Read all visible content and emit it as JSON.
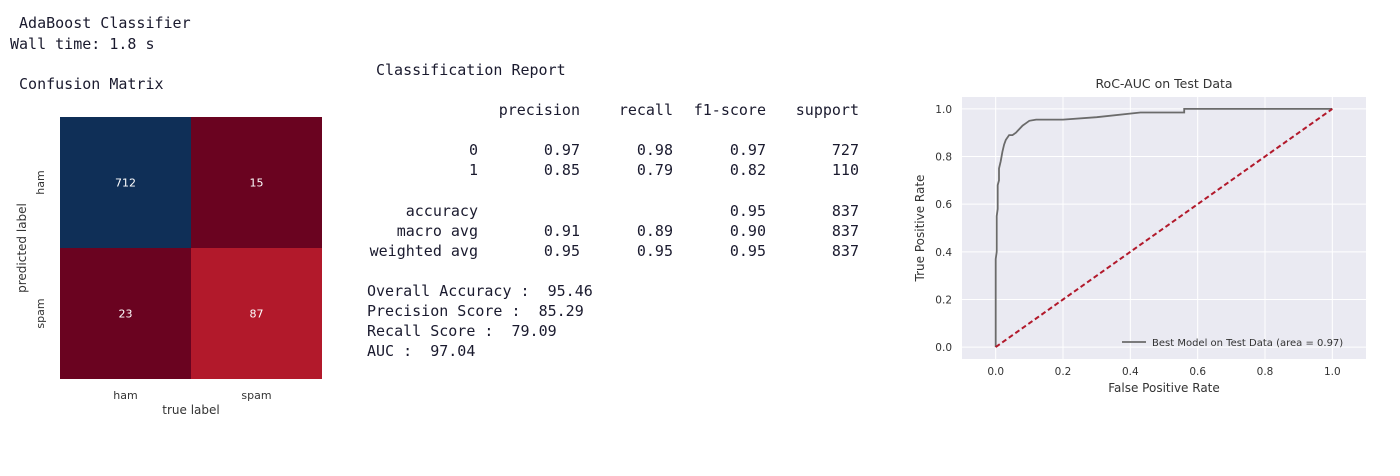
{
  "header": {
    "title": " AdaBoost Classifier",
    "wall_time": "Wall time: 1.8 s",
    "cm_title": " Confusion Matrix"
  },
  "report": {
    "title": "Classification Report",
    "columns": [
      "precision",
      "recall",
      "f1-score",
      "support"
    ],
    "rows": [
      {
        "label": "0",
        "values": [
          "0.97",
          "0.98",
          "0.97",
          "727"
        ]
      },
      {
        "label": "1",
        "values": [
          "0.85",
          "0.79",
          "0.82",
          "110"
        ]
      }
    ],
    "summary_rows": [
      {
        "label": "accuracy",
        "values": [
          "",
          "",
          "0.95",
          "837"
        ]
      },
      {
        "label": "macro avg",
        "values": [
          "0.91",
          "0.89",
          "0.90",
          "837"
        ]
      },
      {
        "label": "weighted avg",
        "values": [
          "0.95",
          "0.95",
          "0.95",
          "837"
        ]
      }
    ],
    "scores": [
      "Overall Accuracy :  95.46",
      "Precision Score :  85.29",
      "Recall Score :  79.09",
      "AUC :  97.04"
    ]
  },
  "chart_data": [
    {
      "type": "heatmap",
      "xlabel": "true label",
      "ylabel": "predicted label",
      "x_categories": [
        "ham",
        "spam"
      ],
      "y_categories": [
        "ham",
        "spam"
      ],
      "values": [
        [
          712,
          15
        ],
        [
          23,
          87
        ]
      ],
      "cell_colors": [
        [
          "#0f2f57",
          "#6a0320"
        ],
        [
          "#6a0320",
          "#b2192b"
        ]
      ]
    },
    {
      "type": "line",
      "title": "RoC-AUC on Test Data",
      "xlabel": "False Positive Rate",
      "ylabel": "True Positive Rate",
      "xlim": [
        -0.1,
        1.1
      ],
      "ylim": [
        -0.05,
        1.05
      ],
      "xticks": [
        "0.0",
        "0.2",
        "0.4",
        "0.6",
        "0.8",
        "1.0"
      ],
      "yticks": [
        "0.0",
        "0.2",
        "0.4",
        "0.6",
        "0.8",
        "1.0"
      ],
      "grid": true,
      "legend_position": "lower-right",
      "series": [
        {
          "name": "Best Model on Test Data (area = 0.97)",
          "color": "#6b6b6b",
          "x": [
            0.0,
            0.0,
            0.003,
            0.003,
            0.006,
            0.006,
            0.01,
            0.01,
            0.015,
            0.02,
            0.025,
            0.03,
            0.04,
            0.05,
            0.06,
            0.08,
            0.09,
            0.1,
            0.12,
            0.2,
            0.3,
            0.43,
            0.56,
            0.56,
            0.8,
            1.0
          ],
          "y": [
            0.0,
            0.37,
            0.4,
            0.55,
            0.58,
            0.68,
            0.7,
            0.75,
            0.78,
            0.82,
            0.85,
            0.87,
            0.89,
            0.89,
            0.9,
            0.93,
            0.94,
            0.95,
            0.955,
            0.955,
            0.965,
            0.985,
            0.985,
            1.0,
            1.0,
            1.0
          ]
        },
        {
          "name": "",
          "color": "#b2192b",
          "dashed": true,
          "x": [
            0.0,
            1.0
          ],
          "y": [
            0.0,
            1.0
          ]
        }
      ]
    }
  ]
}
